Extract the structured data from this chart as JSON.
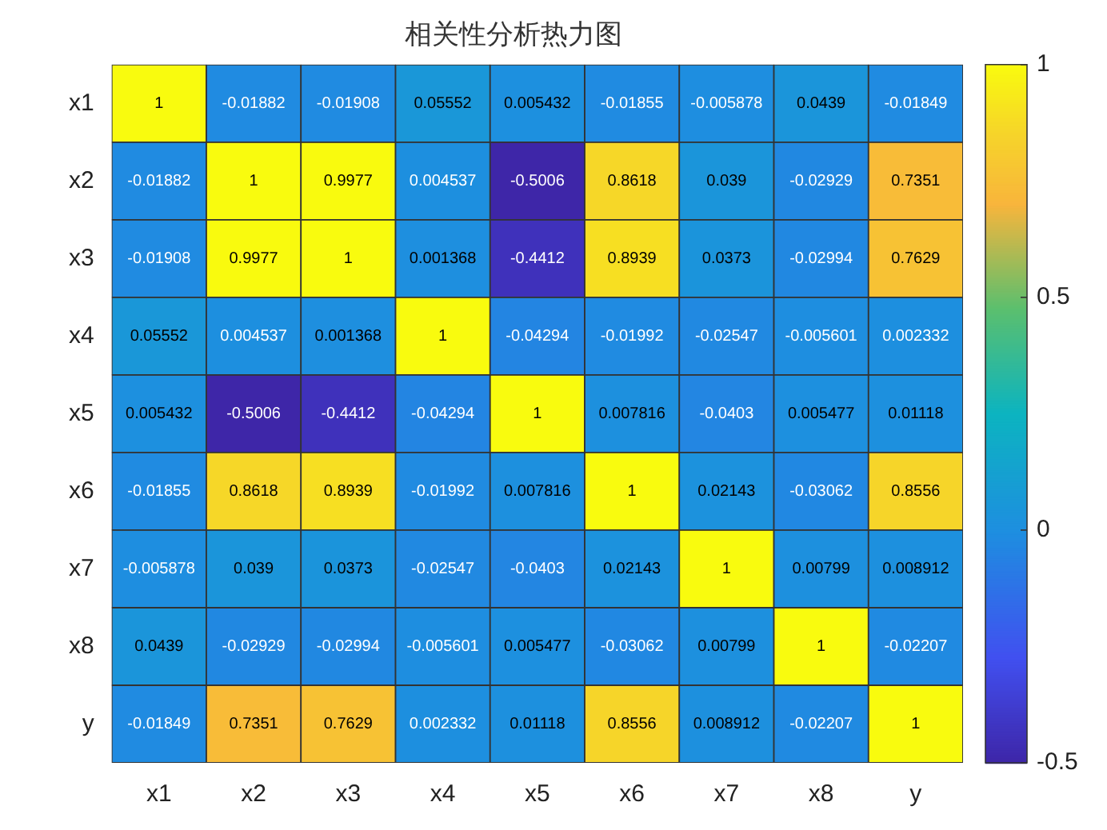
{
  "chart_data": {
    "type": "heatmap",
    "title": "相关性分析热力图",
    "categories": [
      "x1",
      "x2",
      "x3",
      "x4",
      "x5",
      "x6",
      "x7",
      "x8",
      "y"
    ],
    "y_categories": [
      "x1",
      "x2",
      "x3",
      "x4",
      "x5",
      "x6",
      "x7",
      "x8",
      "y"
    ],
    "cells": [
      [
        1,
        -0.01882,
        -0.01908,
        0.05552,
        0.005432,
        -0.01855,
        -0.005878,
        0.0439,
        -0.01849
      ],
      [
        -0.01882,
        1,
        0.9977,
        0.004537,
        -0.5006,
        0.8618,
        0.039,
        -0.02929,
        0.7351
      ],
      [
        -0.01908,
        0.9977,
        1,
        0.001368,
        -0.4412,
        0.8939,
        0.0373,
        -0.02994,
        0.7629
      ],
      [
        0.05552,
        0.004537,
        0.001368,
        1,
        -0.04294,
        -0.01992,
        -0.02547,
        -0.005601,
        0.002332
      ],
      [
        0.005432,
        -0.5006,
        -0.4412,
        -0.04294,
        1,
        0.007816,
        -0.0403,
        0.005477,
        0.01118
      ],
      [
        -0.01855,
        0.8618,
        0.8939,
        -0.01992,
        0.007816,
        1,
        0.02143,
        -0.03062,
        0.8556
      ],
      [
        -0.005878,
        0.039,
        0.0373,
        -0.02547,
        -0.0403,
        0.02143,
        1,
        0.00799,
        0.008912
      ],
      [
        0.0439,
        -0.02929,
        -0.02994,
        -0.005601,
        0.005477,
        -0.03062,
        0.00799,
        1,
        -0.02207
      ],
      [
        -0.01849,
        0.7351,
        0.7629,
        0.002332,
        0.01118,
        0.8556,
        0.008912,
        -0.02207,
        1
      ]
    ],
    "clim": [
      -0.5,
      1
    ],
    "cticks": [
      -0.5,
      0,
      0.5,
      1
    ],
    "data_labels": true
  }
}
